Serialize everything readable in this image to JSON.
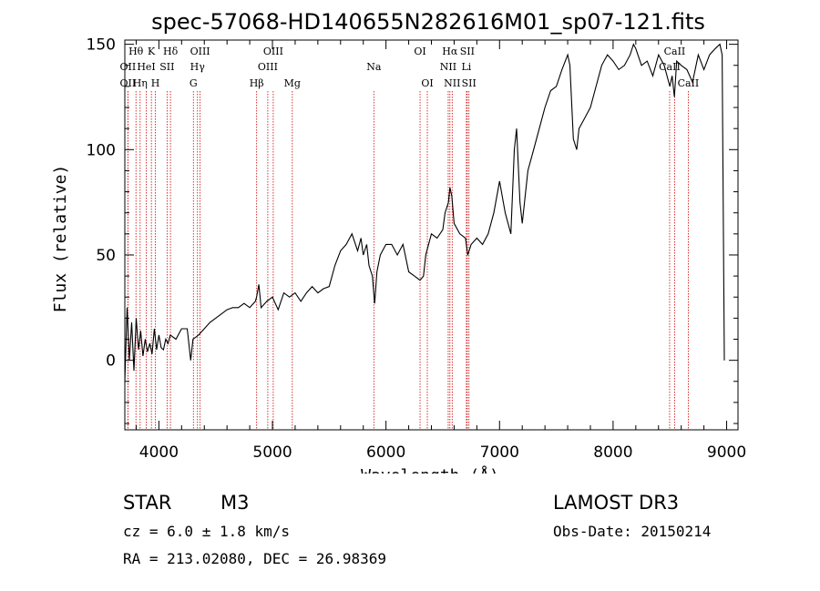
{
  "chart_data": {
    "type": "line",
    "title": "spec-57068-HD140655N282616M01_sp07-121.fits",
    "xlabel": "Wavelength (Å)",
    "ylabel": "Flux (relative)",
    "xlim": [
      3700,
      9100
    ],
    "ylim": [
      -33,
      152
    ],
    "xticks": [
      4000,
      5000,
      6000,
      7000,
      8000,
      9000
    ],
    "yticks": [
      0,
      50,
      100,
      150
    ],
    "grid": false,
    "series": [
      {
        "name": "spectrum",
        "x": [
          3700,
          3720,
          3740,
          3760,
          3780,
          3800,
          3820,
          3840,
          3860,
          3880,
          3900,
          3920,
          3940,
          3960,
          3980,
          4000,
          4020,
          4040,
          4060,
          4080,
          4100,
          4150,
          4200,
          4250,
          4280,
          4300,
          4350,
          4400,
          4450,
          4500,
          4550,
          4600,
          4650,
          4700,
          4750,
          4800,
          4850,
          4860,
          4880,
          4900,
          4950,
          5000,
          5050,
          5100,
          5150,
          5200,
          5250,
          5300,
          5350,
          5400,
          5450,
          5500,
          5550,
          5600,
          5650,
          5700,
          5750,
          5780,
          5800,
          5830,
          5850,
          5880,
          5900,
          5920,
          5950,
          6000,
          6050,
          6100,
          6150,
          6200,
          6250,
          6300,
          6330,
          6350,
          6400,
          6450,
          6500,
          6520,
          6550,
          6563,
          6580,
          6600,
          6650,
          6700,
          6720,
          6750,
          6800,
          6850,
          6900,
          6950,
          7000,
          7050,
          7100,
          7130,
          7150,
          7180,
          7200,
          7250,
          7300,
          7350,
          7400,
          7450,
          7500,
          7550,
          7600,
          7620,
          7650,
          7680,
          7700,
          7750,
          7800,
          7850,
          7900,
          7950,
          8000,
          8050,
          8100,
          8150,
          8180,
          8200,
          8250,
          8300,
          8350,
          8400,
          8450,
          8500,
          8520,
          8540,
          8560,
          8600,
          8650,
          8700,
          8750,
          8800,
          8850,
          8900,
          8940,
          8960,
          8980
        ],
        "y": [
          -10,
          25,
          0,
          18,
          -5,
          20,
          5,
          14,
          2,
          10,
          4,
          8,
          3,
          15,
          5,
          12,
          6,
          5,
          10,
          8,
          12,
          10,
          15,
          15,
          0,
          10,
          12,
          15,
          18,
          20,
          22,
          24,
          25,
          25,
          27,
          25,
          28,
          30,
          36,
          25,
          28,
          30,
          24,
          32,
          30,
          32,
          28,
          32,
          35,
          32,
          34,
          35,
          45,
          52,
          55,
          60,
          52,
          58,
          50,
          55,
          45,
          40,
          27,
          42,
          50,
          55,
          55,
          50,
          55,
          42,
          40,
          38,
          40,
          50,
          60,
          58,
          62,
          70,
          75,
          82,
          78,
          65,
          60,
          58,
          50,
          55,
          58,
          55,
          60,
          70,
          85,
          70,
          60,
          100,
          110,
          75,
          65,
          90,
          100,
          110,
          120,
          128,
          130,
          138,
          145,
          140,
          105,
          100,
          110,
          115,
          120,
          130,
          140,
          145,
          142,
          138,
          140,
          145,
          150,
          148,
          140,
          142,
          135,
          145,
          140,
          130,
          135,
          125,
          142,
          140,
          138,
          132,
          145,
          138,
          145,
          148,
          150,
          145,
          0
        ]
      }
    ],
    "emission_lines": [
      {
        "label": "Hθ",
        "wavelength": 3798,
        "row": 0
      },
      {
        "label": "OII",
        "wavelength": 3727,
        "row": 1
      },
      {
        "label": "OII",
        "wavelength": 3727,
        "row": 2
      },
      {
        "label": "K",
        "wavelength": 3934,
        "row": 0
      },
      {
        "label": "HeI",
        "wavelength": 3889,
        "row": 1
      },
      {
        "label": "Hη",
        "wavelength": 3835,
        "row": 2
      },
      {
        "label": "Hδ",
        "wavelength": 4102,
        "row": 0
      },
      {
        "label": "SII",
        "wavelength": 4072,
        "row": 1
      },
      {
        "label": "H",
        "wavelength": 3969,
        "row": 2
      },
      {
        "label": "OIII",
        "wavelength": 4363,
        "row": 0
      },
      {
        "label": "Hγ",
        "wavelength": 4340,
        "row": 1
      },
      {
        "label": "G",
        "wavelength": 4304,
        "row": 2
      },
      {
        "label": "OIII",
        "wavelength": 5007,
        "row": 0
      },
      {
        "label": "OIII",
        "wavelength": 4959,
        "row": 1
      },
      {
        "label": "Hβ",
        "wavelength": 4861,
        "row": 2
      },
      {
        "label": "Mg",
        "wavelength": 5175,
        "row": 2
      },
      {
        "label": "Na",
        "wavelength": 5893,
        "row": 1
      },
      {
        "label": "OI",
        "wavelength": 6300,
        "row": 0
      },
      {
        "label": "OI",
        "wavelength": 6364,
        "row": 2
      },
      {
        "label": "Hα",
        "wavelength": 6563,
        "row": 0
      },
      {
        "label": "SII",
        "wavelength": 6716,
        "row": 0
      },
      {
        "label": "NII",
        "wavelength": 6548,
        "row": 1
      },
      {
        "label": "Li",
        "wavelength": 6708,
        "row": 1
      },
      {
        "label": "NII",
        "wavelength": 6583,
        "row": 2
      },
      {
        "label": "SII",
        "wavelength": 6731,
        "row": 2
      },
      {
        "label": "CaII",
        "wavelength": 8542,
        "row": 0
      },
      {
        "label": "CaII",
        "wavelength": 8498,
        "row": 1
      },
      {
        "label": "CaII",
        "wavelength": 8662,
        "row": 2
      }
    ]
  },
  "info": {
    "class_label": "STAR",
    "subclass": "M3",
    "survey": "LAMOST DR3",
    "cz": "cz = 6.0 ± 1.8 km/s",
    "obs_date": "Obs-Date: 20150214",
    "coords": "RA = 213.02080, DEC =  26.98369"
  },
  "colors": {
    "spectrum": "#000000",
    "line_markers": "#cc0000"
  }
}
